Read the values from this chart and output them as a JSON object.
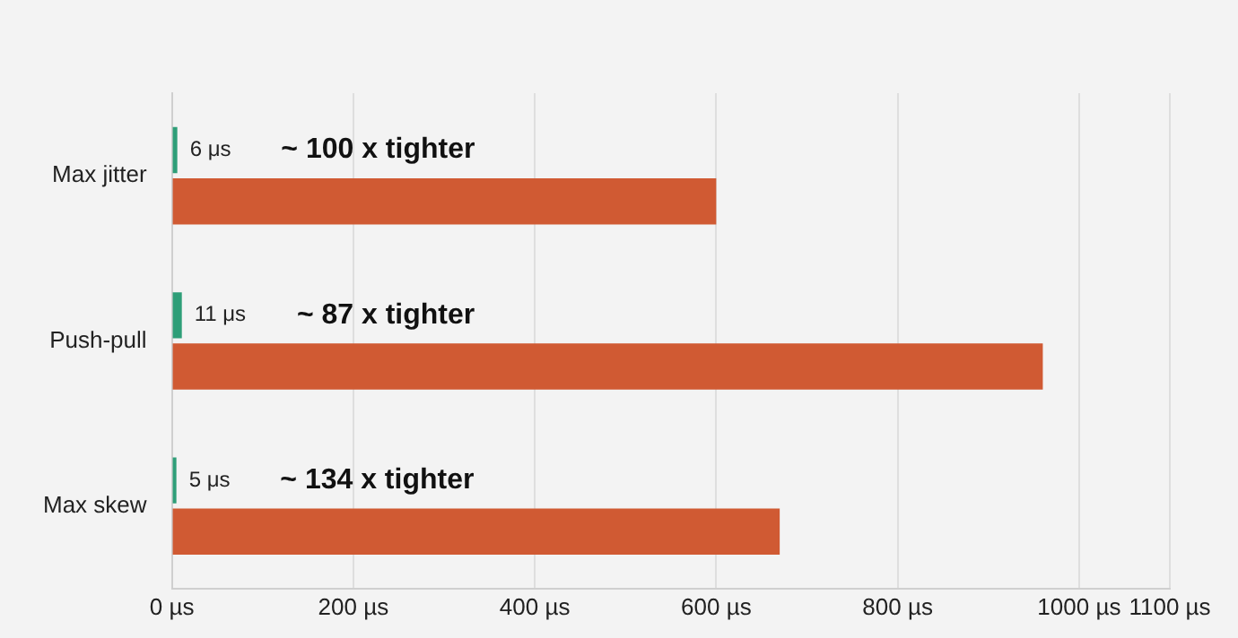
{
  "chart_data": {
    "type": "bar",
    "orientation": "horizontal",
    "categories": [
      "Max jitter",
      "Push-pull",
      "Max skew"
    ],
    "series": [
      {
        "color": "#2e9e78",
        "values": [
          6,
          11,
          5
        ],
        "value_labels": [
          "6 μs",
          "11 μs",
          "5 μs"
        ]
      },
      {
        "color": "#d05a33",
        "values": [
          600,
          960,
          670
        ]
      }
    ],
    "xlim": [
      0,
      1100
    ],
    "xticks": [
      {
        "value": 0,
        "label": "0 µs"
      },
      {
        "value": 200,
        "label": "200 µs"
      },
      {
        "value": 400,
        "label": "400 µs"
      },
      {
        "value": 600,
        "label": "600 µs"
      },
      {
        "value": 800,
        "label": "800 µs"
      },
      {
        "value": 1000,
        "label": "1000 µs"
      },
      {
        "value": 1100,
        "label": "1100 µs"
      }
    ],
    "annotations": [
      {
        "text": "~ 100 x tighter",
        "y": "Max jitter"
      },
      {
        "text": "~ 87 x tighter",
        "y": "Push-pull"
      },
      {
        "text": "~ 134 x tighter",
        "y": "Max skew"
      }
    ],
    "grid": "x",
    "legend": false
  }
}
